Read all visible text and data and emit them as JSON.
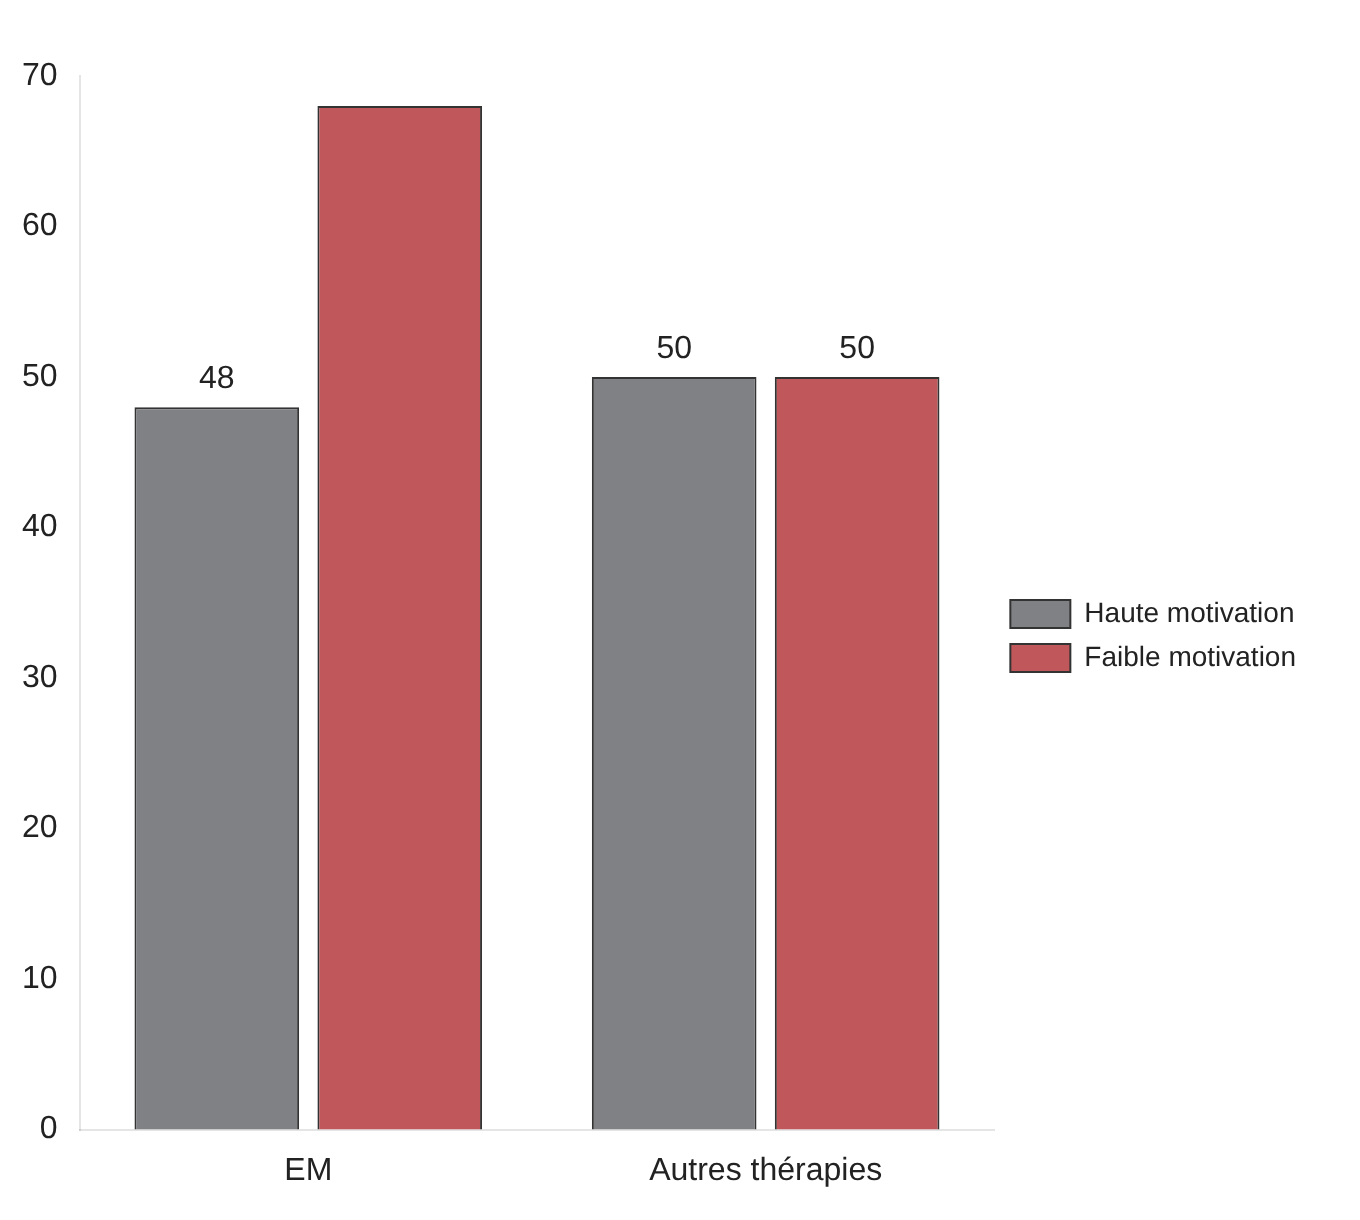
{
  "chart_data": {
    "type": "bar",
    "categories": [
      "EM",
      "Autres thérapies"
    ],
    "series": [
      {
        "name": "Haute motivation",
        "color": "#808185",
        "values": [
          48,
          50
        ],
        "value_labels": [
          "48",
          "50"
        ]
      },
      {
        "name": "Faible motivation",
        "color": "#c0575a",
        "values": [
          68,
          50
        ],
        "value_labels": [
          null,
          "50"
        ]
      }
    ],
    "ylim": [
      0,
      70
    ],
    "yticks": [
      0,
      10,
      20,
      30,
      40,
      50,
      60,
      70
    ],
    "grid": false,
    "legend": "right"
  }
}
